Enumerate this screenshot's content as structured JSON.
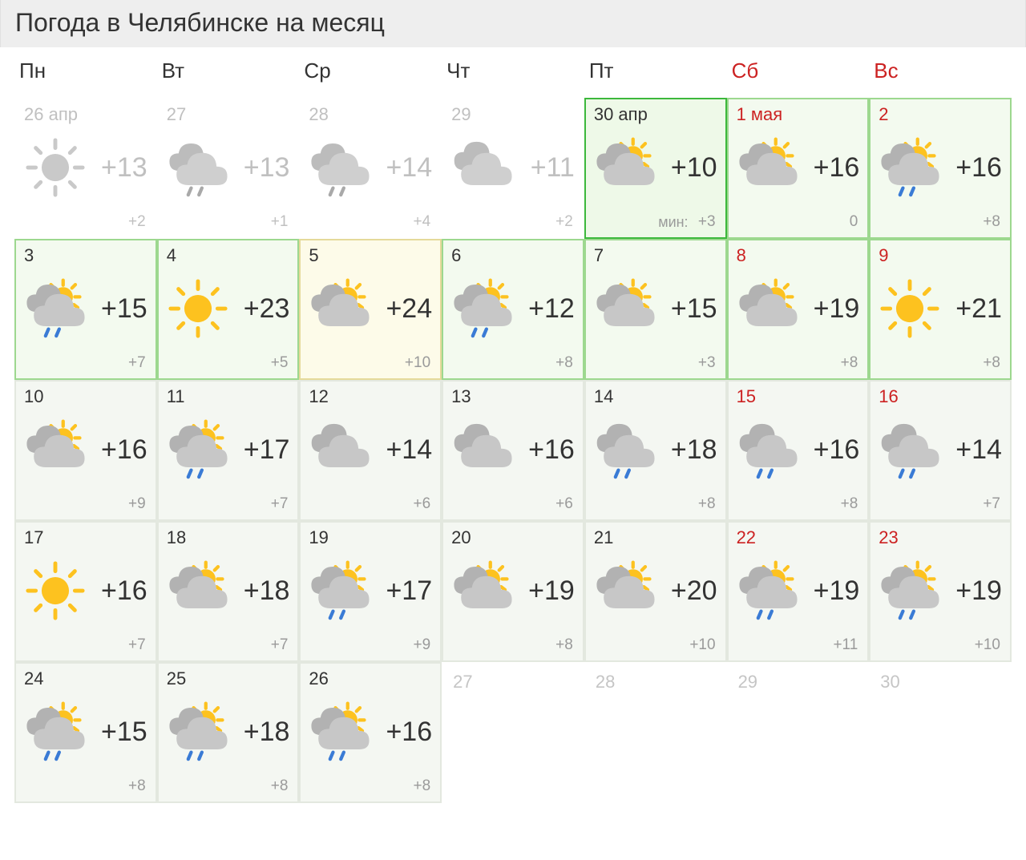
{
  "title": "Погода в Челябинске на месяц",
  "colors": {
    "weekday": "#333333",
    "weekend": "#cc2222",
    "past_text": "#c0c0c0",
    "temp_hi": "#333333",
    "temp_lo": "#9a9a9a",
    "title_bg": "#eeeeee",
    "today_bg": "#eef9e8",
    "today_border": "#3cb83c",
    "near_bg": "#f3faef",
    "near_border": "#9dd88f",
    "yellow_bg": "#fdfbe9",
    "yellow_border": "#e5da9a",
    "far_bg": "#f4f7f2",
    "far_border": "#e3e8df"
  },
  "dow": [
    {
      "label": "Пн",
      "weekend": false
    },
    {
      "label": "Вт",
      "weekend": false
    },
    {
      "label": "Ср",
      "weekend": false
    },
    {
      "label": "Чт",
      "weekend": false
    },
    {
      "label": "Пт",
      "weekend": false
    },
    {
      "label": "Сб",
      "weekend": true
    },
    {
      "label": "Вс",
      "weekend": true
    }
  ],
  "days": [
    {
      "date": "26 апр",
      "hi": "+13",
      "lo": "+2",
      "icon": "sunny",
      "style": "past",
      "weekend": false
    },
    {
      "date": "27",
      "hi": "+13",
      "lo": "+1",
      "icon": "rain-partly",
      "style": "past",
      "weekend": false
    },
    {
      "date": "28",
      "hi": "+14",
      "lo": "+4",
      "icon": "rain-partly",
      "style": "past",
      "weekend": false
    },
    {
      "date": "29",
      "hi": "+11",
      "lo": "+2",
      "icon": "overcast",
      "style": "past",
      "weekend": false
    },
    {
      "date": "30 апр",
      "hi": "+10",
      "lo": "+3",
      "min_label": "мин:",
      "icon": "partly-cloudy",
      "style": "today",
      "weekend": false
    },
    {
      "date": "1 мая",
      "hi": "+16",
      "lo": "0",
      "icon": "partly-cloudy",
      "style": "future-near",
      "weekend": true
    },
    {
      "date": "2",
      "hi": "+16",
      "lo": "+8",
      "icon": "rain-partly",
      "style": "future-near",
      "weekend": true
    },
    {
      "date": "3",
      "hi": "+15",
      "lo": "+7",
      "icon": "rain-partly",
      "style": "future-near",
      "weekend": false
    },
    {
      "date": "4",
      "hi": "+23",
      "lo": "+5",
      "icon": "sunny",
      "style": "future-near",
      "weekend": false
    },
    {
      "date": "5",
      "hi": "+24",
      "lo": "+10",
      "icon": "partly-cloudy",
      "style": "yellow",
      "weekend": false
    },
    {
      "date": "6",
      "hi": "+12",
      "lo": "+8",
      "icon": "rain-partly",
      "style": "future-near",
      "weekend": false
    },
    {
      "date": "7",
      "hi": "+15",
      "lo": "+3",
      "icon": "partly-cloudy",
      "style": "future-near",
      "weekend": false
    },
    {
      "date": "8",
      "hi": "+19",
      "lo": "+8",
      "icon": "partly-cloudy",
      "style": "future-near",
      "weekend": true
    },
    {
      "date": "9",
      "hi": "+21",
      "lo": "+8",
      "icon": "sunny",
      "style": "future-near",
      "weekend": true
    },
    {
      "date": "10",
      "hi": "+16",
      "lo": "+9",
      "icon": "partly-cloudy",
      "style": "far",
      "weekend": false
    },
    {
      "date": "11",
      "hi": "+17",
      "lo": "+7",
      "icon": "rain-partly",
      "style": "far",
      "weekend": false
    },
    {
      "date": "12",
      "hi": "+14",
      "lo": "+6",
      "icon": "overcast",
      "style": "far",
      "weekend": false
    },
    {
      "date": "13",
      "hi": "+16",
      "lo": "+6",
      "icon": "overcast",
      "style": "far",
      "weekend": false
    },
    {
      "date": "14",
      "hi": "+18",
      "lo": "+8",
      "icon": "rain-cloud",
      "style": "far",
      "weekend": false
    },
    {
      "date": "15",
      "hi": "+16",
      "lo": "+8",
      "icon": "rain-cloud",
      "style": "far",
      "weekend": true
    },
    {
      "date": "16",
      "hi": "+14",
      "lo": "+7",
      "icon": "rain-cloud",
      "style": "far",
      "weekend": true
    },
    {
      "date": "17",
      "hi": "+16",
      "lo": "+7",
      "icon": "sunny",
      "style": "far",
      "weekend": false
    },
    {
      "date": "18",
      "hi": "+18",
      "lo": "+7",
      "icon": "partly-cloudy",
      "style": "far",
      "weekend": false
    },
    {
      "date": "19",
      "hi": "+17",
      "lo": "+9",
      "icon": "rain-partly",
      "style": "far",
      "weekend": false
    },
    {
      "date": "20",
      "hi": "+19",
      "lo": "+8",
      "icon": "partly-cloudy",
      "style": "far",
      "weekend": false
    },
    {
      "date": "21",
      "hi": "+20",
      "lo": "+10",
      "icon": "partly-cloudy",
      "style": "far",
      "weekend": false
    },
    {
      "date": "22",
      "hi": "+19",
      "lo": "+11",
      "icon": "rain-partly",
      "style": "far",
      "weekend": true
    },
    {
      "date": "23",
      "hi": "+19",
      "lo": "+10",
      "icon": "rain-partly",
      "style": "far",
      "weekend": true
    },
    {
      "date": "24",
      "hi": "+15",
      "lo": "+8",
      "icon": "rain-partly",
      "style": "far",
      "weekend": false
    },
    {
      "date": "25",
      "hi": "+18",
      "lo": "+8",
      "icon": "rain-partly",
      "style": "far",
      "weekend": false
    },
    {
      "date": "26",
      "hi": "+16",
      "lo": "+8",
      "icon": "rain-partly",
      "style": "far",
      "weekend": false
    },
    {
      "date": "27",
      "placeholder": true
    },
    {
      "date": "28",
      "placeholder": true
    },
    {
      "date": "29",
      "placeholder": true
    },
    {
      "date": "30",
      "placeholder": true
    }
  ]
}
